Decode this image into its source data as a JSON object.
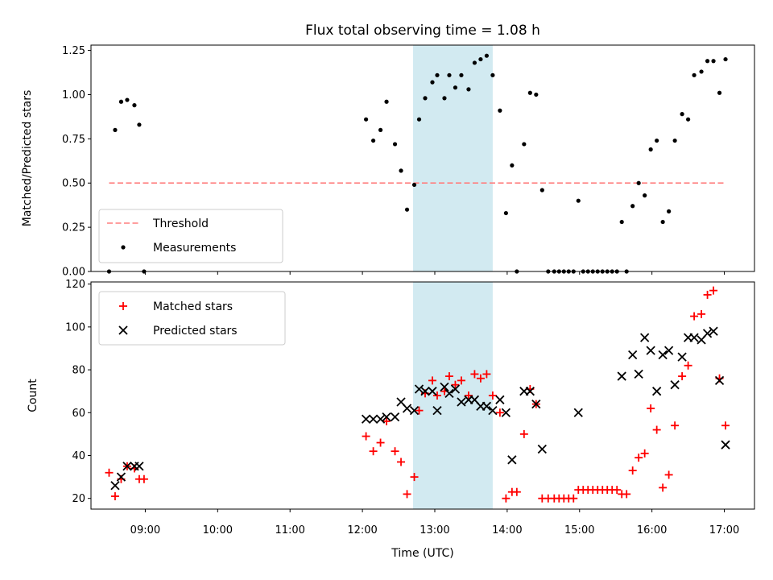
{
  "colors": {
    "matched": "#ff0000",
    "predicted": "#000000",
    "measurements": "#000000",
    "threshold": "#ff7f7f",
    "highlight": "#add8e6"
  },
  "chart_data": [
    {
      "type": "scatter",
      "title": "Flux total observing time = 1.08 h",
      "xlabel": "",
      "ylabel": "Matched/Predicted stars",
      "xlim": [
        "08:15",
        "17:25"
      ],
      "ylim": [
        0,
        1.28
      ],
      "yticks": [
        "0.00",
        "0.25",
        "0.50",
        "0.75",
        "1.00",
        "1.25"
      ],
      "highlight_span": [
        "12:42",
        "13:48"
      ],
      "threshold": {
        "name": "Threshold",
        "value": 0.5,
        "x_range": [
          "08:30",
          "17:00"
        ],
        "style": "dashed"
      },
      "legend": {
        "location": "lower-left",
        "entries": [
          "Threshold",
          "Measurements"
        ]
      },
      "series": [
        {
          "name": "Measurements",
          "marker": "dot",
          "points": [
            [
              "08:30",
              0.0
            ],
            [
              "08:35",
              0.8
            ],
            [
              "08:40",
              0.96
            ],
            [
              "08:45",
              0.97
            ],
            [
              "08:51",
              0.94
            ],
            [
              "08:55",
              0.83
            ],
            [
              "08:59",
              0.0
            ],
            [
              "12:03",
              0.86
            ],
            [
              "12:09",
              0.74
            ],
            [
              "12:15",
              0.8
            ],
            [
              "12:20",
              0.96
            ],
            [
              "12:27",
              0.72
            ],
            [
              "12:32",
              0.57
            ],
            [
              "12:37",
              0.35
            ],
            [
              "12:43",
              0.49
            ],
            [
              "12:47",
              0.86
            ],
            [
              "12:52",
              0.98
            ],
            [
              "12:58",
              1.07
            ],
            [
              "13:02",
              1.11
            ],
            [
              "13:08",
              0.98
            ],
            [
              "13:12",
              1.11
            ],
            [
              "13:17",
              1.04
            ],
            [
              "13:22",
              1.11
            ],
            [
              "13:28",
              1.03
            ],
            [
              "13:33",
              1.18
            ],
            [
              "13:38",
              1.2
            ],
            [
              "13:43",
              1.22
            ],
            [
              "13:48",
              1.11
            ],
            [
              "13:54",
              0.91
            ],
            [
              "13:59",
              0.33
            ],
            [
              "14:04",
              0.6
            ],
            [
              "14:08",
              0.0
            ],
            [
              "14:14",
              0.72
            ],
            [
              "14:19",
              1.01
            ],
            [
              "14:24",
              1.0
            ],
            [
              "14:29",
              0.46
            ],
            [
              "14:34",
              0.0
            ],
            [
              "14:39",
              0.0
            ],
            [
              "14:43",
              0.0
            ],
            [
              "14:47",
              0.0
            ],
            [
              "14:51",
              0.0
            ],
            [
              "14:55",
              0.0
            ],
            [
              "14:59",
              0.4
            ],
            [
              "15:03",
              0.0
            ],
            [
              "15:07",
              0.0
            ],
            [
              "15:11",
              0.0
            ],
            [
              "15:15",
              0.0
            ],
            [
              "15:19",
              0.0
            ],
            [
              "15:23",
              0.0
            ],
            [
              "15:27",
              0.0
            ],
            [
              "15:31",
              0.0
            ],
            [
              "15:35",
              0.28
            ],
            [
              "15:39",
              0.0
            ],
            [
              "15:44",
              0.37
            ],
            [
              "15:49",
              0.5
            ],
            [
              "15:54",
              0.43
            ],
            [
              "15:59",
              0.69
            ],
            [
              "16:04",
              0.74
            ],
            [
              "16:09",
              0.28
            ],
            [
              "16:14",
              0.34
            ],
            [
              "16:19",
              0.74
            ],
            [
              "16:25",
              0.89
            ],
            [
              "16:30",
              0.86
            ],
            [
              "16:35",
              1.11
            ],
            [
              "16:41",
              1.13
            ],
            [
              "16:46",
              1.19
            ],
            [
              "16:51",
              1.19
            ],
            [
              "16:56",
              1.01
            ],
            [
              "17:01",
              1.2
            ]
          ]
        }
      ]
    },
    {
      "type": "scatter",
      "title": "",
      "xlabel": "Time (UTC)",
      "ylabel": "Count",
      "xlim": [
        "08:15",
        "17:25"
      ],
      "ylim": [
        15,
        121
      ],
      "yticks": [
        "20",
        "40",
        "60",
        "80",
        "100",
        "120"
      ],
      "xticks": [
        "09:00",
        "10:00",
        "11:00",
        "12:00",
        "13:00",
        "14:00",
        "15:00",
        "16:00",
        "17:00"
      ],
      "highlight_span": [
        "12:42",
        "13:48"
      ],
      "legend": {
        "location": "top-left",
        "entries": [
          "Matched stars",
          "Predicted stars"
        ]
      },
      "series": [
        {
          "name": "Matched stars",
          "marker": "plus",
          "points": [
            [
              "08:30",
              32
            ],
            [
              "08:35",
              21
            ],
            [
              "08:40",
              29
            ],
            [
              "08:45",
              35
            ],
            [
              "08:51",
              34
            ],
            [
              "08:55",
              29
            ],
            [
              "08:59",
              29
            ],
            [
              "12:03",
              49
            ],
            [
              "12:09",
              42
            ],
            [
              "12:15",
              46
            ],
            [
              "12:20",
              56
            ],
            [
              "12:27",
              42
            ],
            [
              "12:32",
              37
            ],
            [
              "12:37",
              22
            ],
            [
              "12:43",
              30
            ],
            [
              "12:47",
              61
            ],
            [
              "12:52",
              69
            ],
            [
              "12:58",
              75
            ],
            [
              "13:02",
              68
            ],
            [
              "13:08",
              70
            ],
            [
              "13:12",
              77
            ],
            [
              "13:17",
              73
            ],
            [
              "13:22",
              75
            ],
            [
              "13:28",
              68
            ],
            [
              "13:33",
              78
            ],
            [
              "13:38",
              76
            ],
            [
              "13:43",
              78
            ],
            [
              "13:48",
              68
            ],
            [
              "13:54",
              60
            ],
            [
              "13:59",
              20
            ],
            [
              "14:04",
              23
            ],
            [
              "14:08",
              23
            ],
            [
              "14:14",
              50
            ],
            [
              "14:19",
              71
            ],
            [
              "14:24",
              64
            ],
            [
              "14:29",
              20
            ],
            [
              "14:34",
              20
            ],
            [
              "14:39",
              20
            ],
            [
              "14:43",
              20
            ],
            [
              "14:47",
              20
            ],
            [
              "14:51",
              20
            ],
            [
              "14:55",
              20
            ],
            [
              "14:59",
              24
            ],
            [
              "15:03",
              24
            ],
            [
              "15:07",
              24
            ],
            [
              "15:11",
              24
            ],
            [
              "15:15",
              24
            ],
            [
              "15:19",
              24
            ],
            [
              "15:23",
              24
            ],
            [
              "15:27",
              24
            ],
            [
              "15:31",
              24
            ],
            [
              "15:35",
              22
            ],
            [
              "15:39",
              22
            ],
            [
              "15:44",
              33
            ],
            [
              "15:49",
              39
            ],
            [
              "15:54",
              41
            ],
            [
              "15:59",
              62
            ],
            [
              "16:04",
              52
            ],
            [
              "16:09",
              25
            ],
            [
              "16:14",
              31
            ],
            [
              "16:19",
              54
            ],
            [
              "16:25",
              77
            ],
            [
              "16:30",
              82
            ],
            [
              "16:35",
              105
            ],
            [
              "16:41",
              106
            ],
            [
              "16:46",
              115
            ],
            [
              "16:51",
              117
            ],
            [
              "16:56",
              76
            ],
            [
              "17:01",
              54
            ]
          ]
        },
        {
          "name": "Predicted stars",
          "marker": "x",
          "points": [
            [
              "08:35",
              26
            ],
            [
              "08:40",
              30
            ],
            [
              "08:45",
              35
            ],
            [
              "08:51",
              35
            ],
            [
              "08:55",
              35
            ],
            [
              "12:03",
              57
            ],
            [
              "12:09",
              57
            ],
            [
              "12:15",
              57
            ],
            [
              "12:20",
              58
            ],
            [
              "12:27",
              58
            ],
            [
              "12:32",
              65
            ],
            [
              "12:37",
              62
            ],
            [
              "12:43",
              61
            ],
            [
              "12:47",
              71
            ],
            [
              "12:52",
              70
            ],
            [
              "12:58",
              70
            ],
            [
              "13:02",
              61
            ],
            [
              "13:08",
              72
            ],
            [
              "13:12",
              69
            ],
            [
              "13:17",
              71
            ],
            [
              "13:22",
              65
            ],
            [
              "13:28",
              66
            ],
            [
              "13:33",
              66
            ],
            [
              "13:38",
              63
            ],
            [
              "13:43",
              63
            ],
            [
              "13:48",
              61
            ],
            [
              "13:54",
              66
            ],
            [
              "13:59",
              60
            ],
            [
              "14:04",
              38
            ],
            [
              "14:14",
              70
            ],
            [
              "14:19",
              70
            ],
            [
              "14:24",
              64
            ],
            [
              "14:29",
              43
            ],
            [
              "14:59",
              60
            ],
            [
              "15:35",
              77
            ],
            [
              "15:44",
              87
            ],
            [
              "15:49",
              78
            ],
            [
              "15:54",
              95
            ],
            [
              "15:59",
              89
            ],
            [
              "16:04",
              70
            ],
            [
              "16:09",
              87
            ],
            [
              "16:14",
              89
            ],
            [
              "16:19",
              73
            ],
            [
              "16:25",
              86
            ],
            [
              "16:30",
              95
            ],
            [
              "16:35",
              95
            ],
            [
              "16:41",
              94
            ],
            [
              "16:46",
              97
            ],
            [
              "16:51",
              98
            ],
            [
              "16:56",
              75
            ],
            [
              "17:01",
              45
            ]
          ]
        }
      ]
    }
  ]
}
